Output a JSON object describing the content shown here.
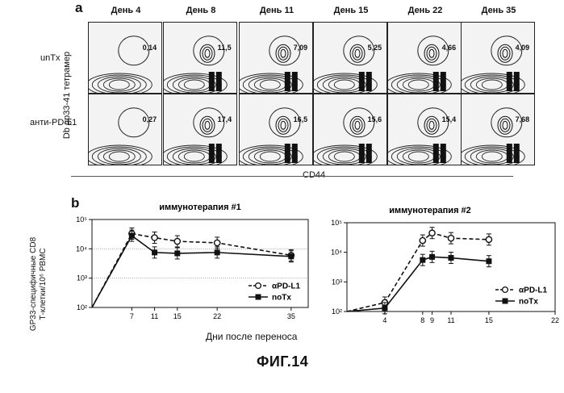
{
  "panel_a": {
    "letter": "a",
    "days": [
      "День 4",
      "День 8",
      "День 11",
      "День 15",
      "День 22",
      "День 35"
    ],
    "rows": [
      {
        "label": "unTx",
        "values": [
          "0,14",
          "11,5",
          "7,09",
          "5,25",
          "4,66",
          "4,09"
        ]
      },
      {
        "label": "анти-PD-L1",
        "values": [
          "0,27",
          "17,4",
          "16,5",
          "15,6",
          "15,4",
          "7,68"
        ]
      }
    ],
    "y_axis_label": "Db gp33-41 тетрамер",
    "x_axis_label": "CD44"
  },
  "panel_b": {
    "letter": "b",
    "x_axis_label": "Дни после переноса",
    "y_axis_label_line1": "GP33-специфичные CD8",
    "y_axis_label_line2": "Т-клетки/10⁶ PBMC",
    "figure_label": "ФИГ.14"
  },
  "chart_data": [
    {
      "type": "line",
      "title": "иммунотерапия #1",
      "yscale": "log",
      "ylim": [
        100,
        100000
      ],
      "xlim": [
        0,
        38
      ],
      "xticks": [
        7,
        11,
        15,
        22,
        35
      ],
      "yticks": [
        "10²",
        "10³",
        "10⁴",
        "10⁵"
      ],
      "hlines": [
        1000,
        10000
      ],
      "series": [
        {
          "name": "αPD-L1",
          "style": "dashed-open-circle",
          "x": [
            0,
            7,
            11,
            15,
            22,
            35
          ],
          "y": [
            100,
            33000,
            24000,
            18000,
            16000,
            6000
          ]
        },
        {
          "name": "noTx",
          "style": "solid-filled-square",
          "x": [
            0,
            7,
            11,
            15,
            22,
            35
          ],
          "y": [
            100,
            28000,
            7500,
            7000,
            7500,
            5500
          ]
        }
      ]
    },
    {
      "type": "line",
      "title": "иммунотерапия #2",
      "yscale": "log",
      "ylim": [
        100,
        100000
      ],
      "xlim": [
        0,
        22
      ],
      "xticks": [
        4,
        8,
        9,
        11,
        15,
        22
      ],
      "yticks": [
        "10²",
        "10³",
        "10⁴",
        "10⁵"
      ],
      "series": [
        {
          "name": "αPD-L1",
          "style": "dashed-open-circle",
          "x": [
            0,
            4,
            8,
            9,
            11,
            15
          ],
          "y": [
            100,
            200,
            25000,
            45000,
            30000,
            27000
          ]
        },
        {
          "name": "noTx",
          "style": "solid-filled-square",
          "x": [
            0,
            4,
            8,
            9,
            11,
            15
          ],
          "y": [
            100,
            130,
            5500,
            7000,
            6500,
            5000
          ]
        }
      ]
    }
  ]
}
